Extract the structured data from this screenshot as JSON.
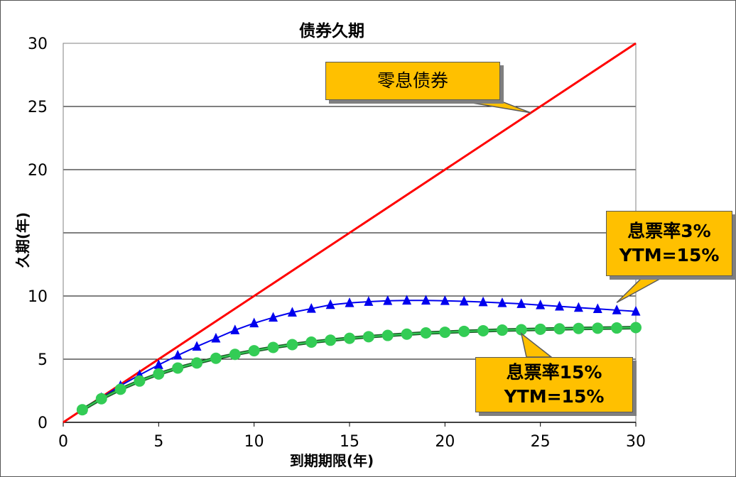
{
  "chart_data": {
    "type": "line",
    "title": "债券久期",
    "xlabel": "到期期限(年)",
    "ylabel": "久期(年)",
    "xlim": [
      0,
      30
    ],
    "ylim": [
      0,
      30
    ],
    "xticks": [
      0,
      5,
      10,
      15,
      20,
      25,
      30
    ],
    "yticks": [
      0,
      5,
      10,
      15,
      20,
      25,
      30
    ],
    "ytick_labels": [
      "0",
      "5",
      "10",
      "",
      "20",
      "25",
      "30"
    ],
    "grid": "horizontal",
    "legend": "none",
    "series": [
      {
        "name": "零息债券",
        "color": "#ff0000",
        "marker": "none",
        "x": [
          0,
          30
        ],
        "y": [
          0,
          30
        ]
      },
      {
        "name": "息票率3% YTM=15%",
        "color": "#0000ee",
        "marker": "triangle",
        "x": [
          1,
          2,
          3,
          4,
          5,
          6,
          7,
          8,
          9,
          10,
          11,
          12,
          13,
          14,
          15,
          16,
          17,
          18,
          19,
          20,
          21,
          22,
          23,
          24,
          25,
          26,
          27,
          28,
          29,
          30
        ],
        "y": [
          1.0,
          1.95,
          2.9,
          3.75,
          4.55,
          5.3,
          6.0,
          6.65,
          7.3,
          7.85,
          8.3,
          8.7,
          9.0,
          9.3,
          9.45,
          9.55,
          9.62,
          9.65,
          9.65,
          9.62,
          9.58,
          9.52,
          9.45,
          9.38,
          9.28,
          9.18,
          9.08,
          8.98,
          8.88,
          8.78
        ]
      },
      {
        "name": "息票率15% YTM=15%",
        "color": "#33cc55",
        "marker": "circle",
        "x": [
          1,
          2,
          3,
          4,
          5,
          6,
          7,
          8,
          9,
          10,
          11,
          12,
          13,
          14,
          15,
          16,
          17,
          18,
          19,
          20,
          21,
          22,
          23,
          24,
          25,
          26,
          27,
          28,
          29,
          30
        ],
        "y": [
          1.0,
          1.87,
          2.62,
          3.27,
          3.83,
          4.3,
          4.7,
          5.07,
          5.38,
          5.67,
          5.93,
          6.15,
          6.35,
          6.5,
          6.65,
          6.78,
          6.88,
          6.98,
          7.08,
          7.13,
          7.2,
          7.25,
          7.3,
          7.33,
          7.37,
          7.4,
          7.43,
          7.45,
          7.47,
          7.5
        ]
      }
    ]
  },
  "annotations": [
    {
      "lines": [
        "零息债券"
      ]
    },
    {
      "lines": [
        "息票率3%",
        "YTM=15%"
      ]
    },
    {
      "lines": [
        "息票率15%",
        "YTM=15%"
      ]
    }
  ]
}
